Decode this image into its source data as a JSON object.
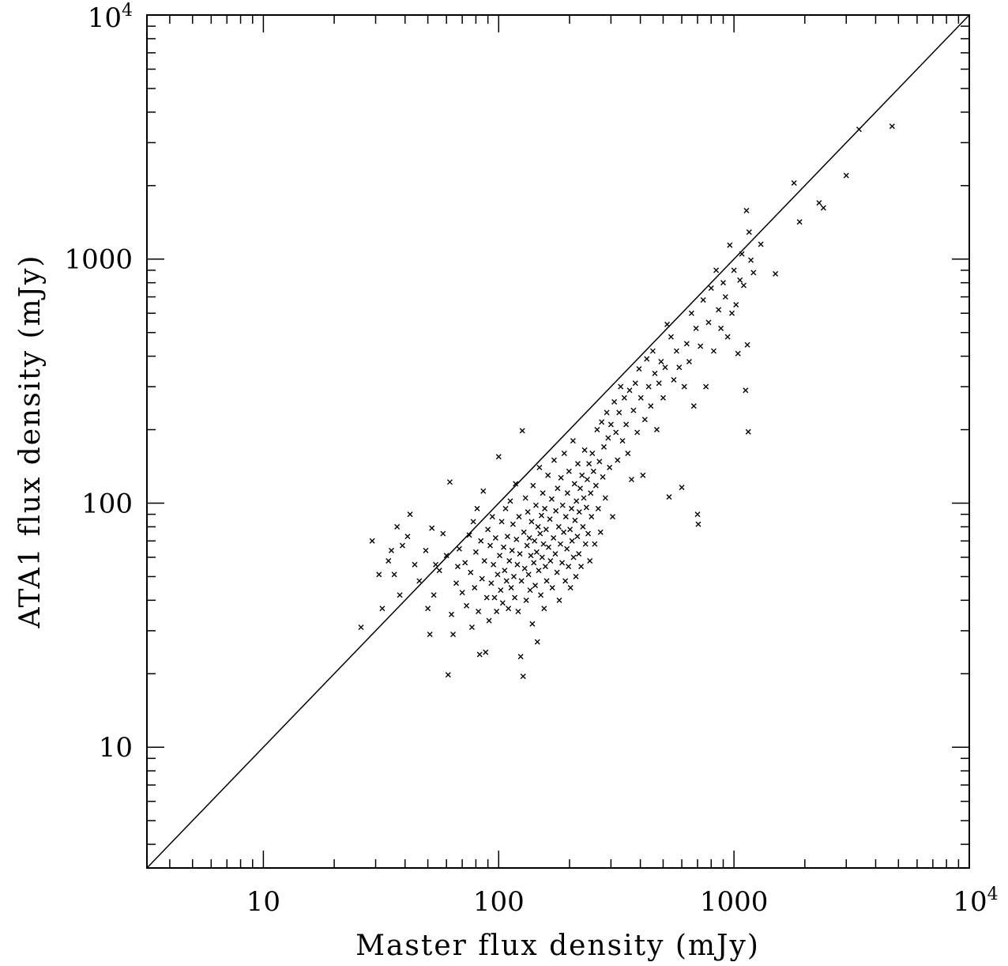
{
  "chart_data": {
    "type": "scatter",
    "title": "",
    "xlabel": "Master flux density (mJy)",
    "ylabel": "ATA1 flux density (mJy)",
    "x_scale": "log",
    "y_scale": "log",
    "xlim": [
      3.2,
      10000
    ],
    "ylim": [
      3.2,
      10000
    ],
    "x_ticks": [
      {
        "value": 10,
        "label": "10"
      },
      {
        "value": 100,
        "label": "100"
      },
      {
        "value": 1000,
        "label": "1000"
      },
      {
        "value": 10000,
        "label": "10",
        "exponent": "4"
      }
    ],
    "y_ticks": [
      {
        "value": 10,
        "label": "10"
      },
      {
        "value": 100,
        "label": "100"
      },
      {
        "value": 1000,
        "label": "1000"
      },
      {
        "value": 10000,
        "label": "10",
        "exponent": "4"
      }
    ],
    "grid": false,
    "marker": "x",
    "reference_line": {
      "type": "y=x"
    },
    "series": [
      {
        "points": [
          [
            26,
            31
          ],
          [
            29,
            70
          ],
          [
            31,
            51
          ],
          [
            32,
            37
          ],
          [
            34,
            58
          ],
          [
            35,
            64
          ],
          [
            36,
            51
          ],
          [
            37,
            80
          ],
          [
            38,
            42
          ],
          [
            39,
            67
          ],
          [
            41,
            73
          ],
          [
            42,
            90
          ],
          [
            44,
            56
          ],
          [
            46,
            48
          ],
          [
            49,
            64
          ],
          [
            50,
            37
          ],
          [
            51,
            29
          ],
          [
            52,
            79
          ],
          [
            53,
            42
          ],
          [
            54,
            56
          ],
          [
            56,
            53
          ],
          [
            58,
            75
          ],
          [
            60,
            61
          ],
          [
            61,
            19.8
          ],
          [
            62,
            122
          ],
          [
            63,
            35
          ],
          [
            64,
            29
          ],
          [
            66,
            47
          ],
          [
            67,
            55
          ],
          [
            68,
            65
          ],
          [
            70,
            43
          ],
          [
            72,
            57
          ],
          [
            73,
            38
          ],
          [
            75,
            74
          ],
          [
            76,
            52
          ],
          [
            77,
            31
          ],
          [
            78,
            84
          ],
          [
            79,
            45
          ],
          [
            80,
            63
          ],
          [
            81,
            95
          ],
          [
            82,
            36
          ],
          [
            83,
            24
          ],
          [
            84,
            70
          ],
          [
            85,
            49
          ],
          [
            86,
            112
          ],
          [
            87,
            58
          ],
          [
            88,
            24.5
          ],
          [
            89,
            41
          ],
          [
            90,
            78
          ],
          [
            91,
            33
          ],
          [
            92,
            67
          ],
          [
            93,
            47
          ],
          [
            94,
            88
          ],
          [
            95,
            56
          ],
          [
            96,
            41
          ],
          [
            97,
            72
          ],
          [
            98,
            36
          ],
          [
            99,
            51
          ],
          [
            100,
            155
          ],
          [
            101,
            61
          ],
          [
            102,
            44
          ],
          [
            103,
            84
          ],
          [
            104,
            39
          ],
          [
            105,
            66
          ],
          [
            106,
            53
          ],
          [
            107,
            95
          ],
          [
            108,
            48
          ],
          [
            109,
            73
          ],
          [
            110,
            37
          ],
          [
            111,
            58
          ],
          [
            112,
            102
          ],
          [
            113,
            45
          ],
          [
            114,
            64
          ],
          [
            115,
            82
          ],
          [
            116,
            50
          ],
          [
            117,
            41
          ],
          [
            118,
            120
          ],
          [
            119,
            71
          ],
          [
            120,
            56
          ],
          [
            121,
            36
          ],
          [
            122,
            88
          ],
          [
            123,
            62
          ],
          [
            124,
            23.5
          ],
          [
            125,
            48
          ],
          [
            126,
            198
          ],
          [
            127,
            19.5
          ],
          [
            128,
            76
          ],
          [
            129,
            54
          ],
          [
            130,
            105
          ],
          [
            131,
            40
          ],
          [
            132,
            67
          ],
          [
            133,
            92
          ],
          [
            134,
            51
          ],
          [
            135,
            72
          ],
          [
            136,
            44
          ],
          [
            137,
            61
          ],
          [
            138,
            84
          ],
          [
            139,
            32
          ],
          [
            140,
            118
          ],
          [
            141,
            57
          ],
          [
            142,
            70
          ],
          [
            143,
            46
          ],
          [
            144,
            98
          ],
          [
            145,
            63
          ],
          [
            146,
            27
          ],
          [
            147,
            80
          ],
          [
            148,
            53
          ],
          [
            149,
            140
          ],
          [
            150,
            75
          ],
          [
            151,
            42
          ],
          [
            152,
            89
          ],
          [
            153,
            60
          ],
          [
            154,
            110
          ],
          [
            155,
            68
          ],
          [
            156,
            37
          ],
          [
            157,
            95
          ],
          [
            158,
            55
          ],
          [
            159,
            78
          ],
          [
            160,
            48
          ],
          [
            162,
            130
          ],
          [
            163,
            66
          ],
          [
            165,
            86
          ],
          [
            166,
            58
          ],
          [
            168,
            104
          ],
          [
            169,
            45
          ],
          [
            171,
            72
          ],
          [
            172,
            150
          ],
          [
            174,
            62
          ],
          [
            175,
            93
          ],
          [
            177,
            52
          ],
          [
            178,
            115
          ],
          [
            180,
            80
          ],
          [
            181,
            40
          ],
          [
            183,
            68
          ],
          [
            184,
            127
          ],
          [
            186,
            57
          ],
          [
            187,
            98
          ],
          [
            189,
            76
          ],
          [
            190,
            160
          ],
          [
            192,
            48
          ],
          [
            193,
            88
          ],
          [
            195,
            65
          ],
          [
            196,
            110
          ],
          [
            198,
            55
          ],
          [
            199,
            135
          ],
          [
            201,
            78
          ],
          [
            202,
            45
          ],
          [
            204,
            95
          ],
          [
            205,
            70
          ],
          [
            207,
            180
          ],
          [
            208,
            60
          ],
          [
            210,
            120
          ],
          [
            211,
            85
          ],
          [
            213,
            50
          ],
          [
            214,
            102
          ],
          [
            216,
            73
          ],
          [
            217,
            145
          ],
          [
            219,
            62
          ],
          [
            220,
            92
          ],
          [
            222,
            115
          ],
          [
            224,
            55
          ],
          [
            226,
            130
          ],
          [
            228,
            80
          ],
          [
            230,
            105
          ],
          [
            232,
            165
          ],
          [
            234,
            68
          ],
          [
            236,
            96
          ],
          [
            238,
            125
          ],
          [
            240,
            75
          ],
          [
            242,
            145
          ],
          [
            244,
            58
          ],
          [
            246,
            110
          ],
          [
            248,
            88
          ],
          [
            250,
            160
          ],
          [
            253,
            135
          ],
          [
            256,
            68
          ],
          [
            259,
            118
          ],
          [
            262,
            200
          ],
          [
            265,
            95
          ],
          [
            268,
            148
          ],
          [
            271,
            76
          ],
          [
            274,
            215
          ],
          [
            277,
            128
          ],
          [
            280,
            170
          ],
          [
            284,
            105
          ],
          [
            288,
            235
          ],
          [
            292,
            185
          ],
          [
            296,
            140
          ],
          [
            300,
            210
          ],
          [
            305,
            88
          ],
          [
            310,
            260
          ],
          [
            315,
            195
          ],
          [
            320,
            150
          ],
          [
            325,
            235
          ],
          [
            330,
            300
          ],
          [
            336,
            180
          ],
          [
            342,
            270
          ],
          [
            348,
            210
          ],
          [
            354,
            160
          ],
          [
            360,
            290
          ],
          [
            367,
            125
          ],
          [
            374,
            240
          ],
          [
            381,
            310
          ],
          [
            388,
            195
          ],
          [
            395,
            355
          ],
          [
            402,
            270
          ],
          [
            410,
            130
          ],
          [
            418,
            220
          ],
          [
            426,
            390
          ],
          [
            434,
            300
          ],
          [
            443,
            250
          ],
          [
            452,
            420
          ],
          [
            461,
            340
          ],
          [
            470,
            200
          ],
          [
            480,
            310
          ],
          [
            490,
            380
          ],
          [
            500,
            270
          ],
          [
            510,
            360
          ],
          [
            520,
            540
          ],
          [
            530,
            106
          ],
          [
            540,
            480
          ],
          [
            555,
            320
          ],
          [
            570,
            420
          ],
          [
            585,
            360
          ],
          [
            600,
            116
          ],
          [
            615,
            300
          ],
          [
            630,
            450
          ],
          [
            645,
            380
          ],
          [
            660,
            600
          ],
          [
            675,
            250
          ],
          [
            690,
            520
          ],
          [
            700,
            90
          ],
          [
            705,
            82
          ],
          [
            720,
            440
          ],
          [
            740,
            680
          ],
          [
            760,
            300
          ],
          [
            780,
            550
          ],
          [
            800,
            760
          ],
          [
            820,
            420
          ],
          [
            840,
            900
          ],
          [
            860,
            620
          ],
          [
            880,
            520
          ],
          [
            900,
            800
          ],
          [
            920,
            700
          ],
          [
            940,
            480
          ],
          [
            960,
            1140
          ],
          [
            980,
            600
          ],
          [
            1000,
            900
          ],
          [
            1020,
            650
          ],
          [
            1040,
            410
          ],
          [
            1060,
            820
          ],
          [
            1080,
            1050
          ],
          [
            1100,
            780
          ],
          [
            1120,
            290
          ],
          [
            1130,
            1580
          ],
          [
            1140,
            445
          ],
          [
            1150,
            196
          ],
          [
            1160,
            1290
          ],
          [
            1180,
            990
          ],
          [
            1210,
            880
          ],
          [
            1300,
            1150
          ],
          [
            1500,
            870
          ],
          [
            1800,
            2050
          ],
          [
            1900,
            1420
          ],
          [
            2300,
            1700
          ],
          [
            2400,
            1620
          ],
          [
            3000,
            2200
          ],
          [
            3400,
            3400
          ],
          [
            4700,
            3500
          ]
        ]
      }
    ]
  }
}
